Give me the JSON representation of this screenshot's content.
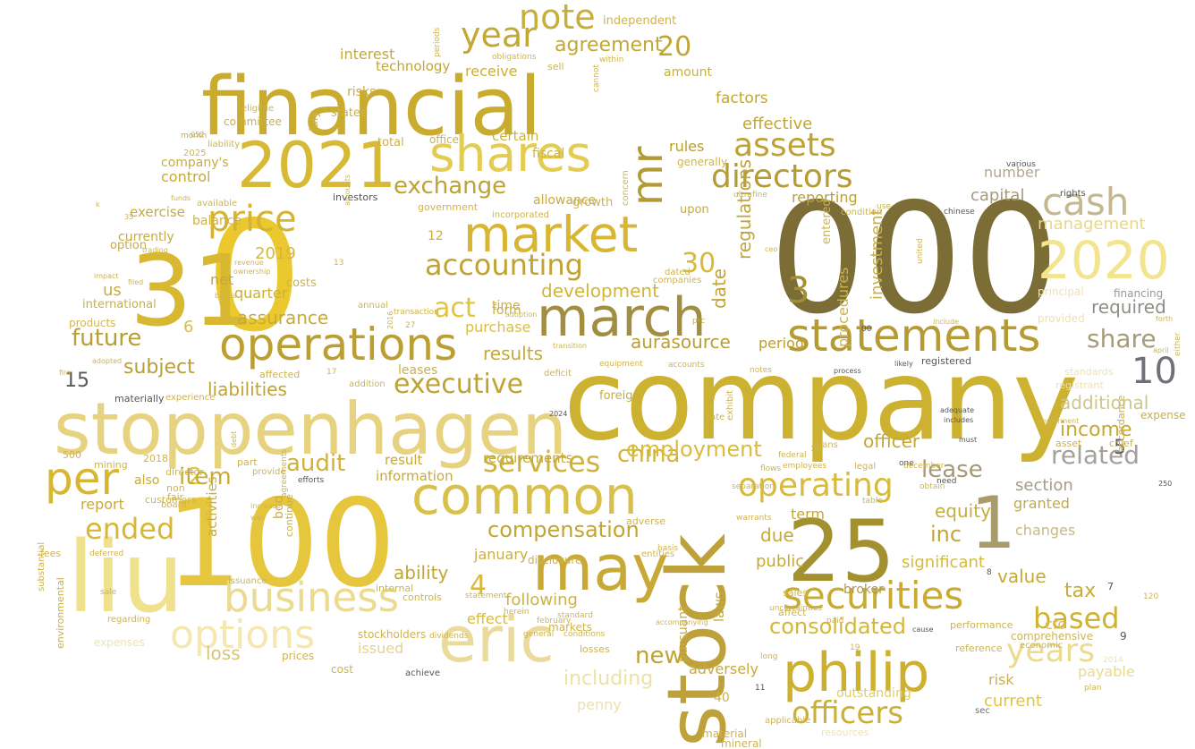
{
  "words": [
    {
      "t": "company",
      "c": "#cdb130"
    },
    {
      "t": "0",
      "c": "#eac82e"
    },
    {
      "t": "000",
      "c": "#7c6d36"
    },
    {
      "t": "financial",
      "c": "#c9ab2e"
    },
    {
      "t": "100",
      "c": "#e6c63d"
    },
    {
      "t": "stoppenhagen",
      "c": "#e6d27f"
    },
    {
      "t": "stock",
      "c": "#bea13a"
    },
    {
      "t": "31",
      "c": "#d8b830"
    },
    {
      "t": "liu",
      "c": "#f0e18d"
    },
    {
      "t": "25",
      "c": "#a39130"
    },
    {
      "t": "1",
      "c": "#a89b6c"
    },
    {
      "t": "2021",
      "c": "#d7b935"
    },
    {
      "t": "march",
      "c": "#a18e40"
    },
    {
      "t": "philip",
      "c": "#ccb02e"
    },
    {
      "t": "may",
      "c": "#c9a935"
    },
    {
      "t": "common",
      "c": "#d9c04a"
    },
    {
      "t": "eric",
      "c": "#eadb9d"
    },
    {
      "t": "2020",
      "c": "#f3e48e"
    },
    {
      "t": "shares",
      "c": "#e3cc50"
    },
    {
      "t": "statements",
      "c": "#b69b35"
    },
    {
      "t": "operations",
      "c": "#bb9f33"
    },
    {
      "t": "market",
      "c": "#d8b631"
    },
    {
      "t": "business",
      "c": "#ebdb90"
    },
    {
      "t": "securities",
      "c": "#c9ab32"
    },
    {
      "t": "cash",
      "c": "#c4b98e"
    },
    {
      "t": "options",
      "c": "#f4e8b0"
    },
    {
      "t": "per",
      "c": "#d8b630"
    },
    {
      "t": "accounting",
      "c": "#c0a332"
    },
    {
      "t": "price",
      "c": "#d5b434"
    },
    {
      "t": "year",
      "c": "#c4a834"
    },
    {
      "t": "note",
      "c": "#c8ae3a"
    },
    {
      "t": "assets",
      "c": "#bea236"
    },
    {
      "t": "directors",
      "c": "#b59c35"
    },
    {
      "t": "mr",
      "c": "#b49a35"
    },
    {
      "t": "operating",
      "c": "#d8bb3c"
    },
    {
      "t": "years",
      "c": "#ecdb8e"
    },
    {
      "t": "officers",
      "c": "#cbb035"
    },
    {
      "t": "act",
      "c": "#e2c53b"
    },
    {
      "t": "services",
      "c": "#cdb23e"
    },
    {
      "t": "executive",
      "c": "#bfa434"
    },
    {
      "t": "consolidated",
      "c": "#d3b838"
    },
    {
      "t": "ended",
      "c": "#d7b734"
    },
    {
      "t": "based",
      "c": "#d0b231"
    },
    {
      "t": "exchange",
      "c": "#bea234"
    },
    {
      "t": "share",
      "c": "#a59c78"
    },
    {
      "t": "related",
      "c": "#a5a19a"
    },
    {
      "t": "10",
      "c": "#6e7278"
    },
    {
      "t": "3",
      "c": "#a28e33"
    },
    {
      "t": "30",
      "c": "#d7b93b"
    },
    {
      "t": "20",
      "c": "#c2a635"
    },
    {
      "t": "4",
      "c": "#d7b93b"
    },
    {
      "t": "2",
      "c": "#e3c646"
    },
    {
      "t": "5",
      "c": "#5d5d5d"
    },
    {
      "t": "audit",
      "c": "#d0b13a"
    },
    {
      "t": "china",
      "c": "#d0b338"
    },
    {
      "t": "new",
      "c": "#c0a334"
    },
    {
      "t": "compensation",
      "c": "#c2a633"
    },
    {
      "t": "employment",
      "c": "#d9bc3e"
    },
    {
      "t": "agreement",
      "c": "#c3a735"
    },
    {
      "t": "development",
      "c": "#d3b636"
    },
    {
      "t": "future",
      "c": "#b7a036"
    },
    {
      "t": "subject",
      "c": "#b99f36"
    },
    {
      "t": "liabilities",
      "c": "#c0a334"
    },
    {
      "t": "assurance",
      "c": "#c8ab36"
    },
    {
      "t": "results",
      "c": "#c4a934"
    },
    {
      "t": "aurasource",
      "c": "#ba9f34"
    },
    {
      "t": "management",
      "c": "#e7d78a"
    },
    {
      "t": "required",
      "c": "#8e8d86"
    },
    {
      "t": "additional",
      "c": "#cdc78d"
    },
    {
      "t": "income",
      "c": "#c5a935"
    },
    {
      "t": "officer",
      "c": "#c4a836"
    },
    {
      "t": "lease",
      "c": "#a5997a"
    },
    {
      "t": "tax",
      "c": "#c9ac35"
    },
    {
      "t": "value",
      "c": "#c5aa34"
    },
    {
      "t": "including",
      "c": "#ede1a5"
    },
    {
      "t": "current",
      "c": "#e0c448"
    },
    {
      "t": "outstanding",
      "c": "#e0cc6f"
    },
    {
      "t": "payable",
      "c": "#e9da92"
    },
    {
      "t": "ability",
      "c": "#c1a638"
    },
    {
      "t": "public",
      "c": "#c5aa36"
    },
    {
      "t": "due",
      "c": "#c5a935"
    },
    {
      "t": "inc",
      "c": "#c3a634"
    },
    {
      "t": "equity",
      "c": "#c7ad3a"
    },
    {
      "t": "significant",
      "c": "#d6bb3a"
    },
    {
      "t": "capital",
      "c": "#a59b7a"
    },
    {
      "t": "number",
      "c": "#b5a78e"
    },
    {
      "t": "section",
      "c": "#a59c88"
    },
    {
      "t": "granted",
      "c": "#c3aa48"
    },
    {
      "t": "changes",
      "c": "#c9b981"
    },
    {
      "t": "investment",
      "c": "#c8af4a"
    },
    {
      "t": "procedures",
      "c": "#ccb44a"
    },
    {
      "t": "regulations",
      "c": "#bda543"
    },
    {
      "t": "date",
      "c": "#c2a532"
    },
    {
      "t": "reporting",
      "c": "#b9a036"
    },
    {
      "t": "effective",
      "c": "#c1a536"
    },
    {
      "t": "factors",
      "c": "#c2a634"
    },
    {
      "t": "rules",
      "c": "#b99d34"
    },
    {
      "t": "period",
      "c": "#b99e34"
    },
    {
      "t": "term",
      "c": "#c3a835"
    },
    {
      "t": "broker",
      "c": "#ae9a4f"
    },
    {
      "t": "interest",
      "c": "#c3a93b"
    },
    {
      "t": "technology",
      "c": "#c3a737"
    },
    {
      "t": "receive",
      "c": "#cbb038"
    },
    {
      "t": "certain",
      "c": "#cbb23b"
    },
    {
      "t": "control",
      "c": "#c6a938"
    },
    {
      "t": "exercise",
      "c": "#c6ab3b"
    },
    {
      "t": "quarter",
      "c": "#cbaf38"
    },
    {
      "t": "net",
      "c": "#c3a838"
    },
    {
      "t": "us",
      "c": "#cbad38"
    },
    {
      "t": "2019",
      "c": "#d5b73d"
    },
    {
      "t": "12",
      "c": "#c8ad40"
    },
    {
      "t": "purchase",
      "c": "#d8be46"
    },
    {
      "t": "time",
      "c": "#c8ae48"
    },
    {
      "t": "form",
      "c": "#c8ae48"
    },
    {
      "t": "leases",
      "c": "#cbb14a"
    },
    {
      "t": "item",
      "c": "#c7ab38"
    },
    {
      "t": "15",
      "c": "#595959"
    },
    {
      "t": "6",
      "c": "#d8be4a"
    },
    {
      "t": "january",
      "c": "#c9af4a"
    },
    {
      "t": "following",
      "c": "#ccb348"
    },
    {
      "t": "effect",
      "c": "#d6bb3c"
    },
    {
      "t": "issued",
      "c": "#e4d48c"
    },
    {
      "t": "loss",
      "c": "#d8c571"
    },
    {
      "t": "report",
      "c": "#c6aa40"
    },
    {
      "t": "information",
      "c": "#c5aa3c"
    },
    {
      "t": "result",
      "c": "#c5a93c"
    },
    {
      "t": "requirements",
      "c": "#c4a93c"
    },
    {
      "t": "laws",
      "c": "#c3a93e"
    },
    {
      "t": "adversely",
      "c": "#c6ab3e"
    },
    {
      "t": "risk",
      "c": "#c9b05a"
    },
    {
      "t": "40",
      "c": "#cbb148"
    },
    {
      "t": "penny",
      "c": "#ebe1b0"
    },
    {
      "t": "cfo",
      "c": "#d7be5a"
    },
    {
      "t": "pursuant",
      "c": "#c6ab40"
    },
    {
      "t": "activities",
      "c": "#c8ae44"
    },
    {
      "t": "bod",
      "c": "#c9ae44"
    },
    {
      "t": "also",
      "c": "#c7ab40"
    },
    {
      "t": "international",
      "c": "#c9af48"
    },
    {
      "t": "products",
      "c": "#cfb85a"
    },
    {
      "t": "costs",
      "c": "#cbb34e"
    },
    {
      "t": "month",
      "c": "#c5ab48"
    },
    {
      "t": "committee",
      "c": "#c9b050"
    },
    {
      "t": "company's",
      "c": "#c8ad42"
    },
    {
      "t": "balance",
      "c": "#ccb24a"
    },
    {
      "t": "currently",
      "c": "#c7ac44"
    },
    {
      "t": "option",
      "c": "#c8ad44"
    },
    {
      "t": "july",
      "c": "#ccb24a"
    },
    {
      "t": "states",
      "c": "#ccb24a"
    },
    {
      "t": "risks",
      "c": "#c8ae44"
    },
    {
      "t": "total",
      "c": "#cbb14c"
    },
    {
      "t": "office",
      "c": "#cbb24e"
    },
    {
      "t": "fiscal",
      "c": "#ccb24a"
    },
    {
      "t": "allowance",
      "c": "#c6ac46"
    },
    {
      "t": "growth",
      "c": "#ccb24c"
    },
    {
      "t": "government",
      "c": "#cdb450"
    },
    {
      "t": "incorporated",
      "c": "#ccb452"
    },
    {
      "t": "upon",
      "c": "#c6ab44"
    },
    {
      "t": "generally",
      "c": "#cdb452"
    },
    {
      "t": "amount",
      "c": "#c9af48"
    },
    {
      "t": "sell",
      "c": "#cdb452"
    },
    {
      "t": "independent",
      "c": "#cdb452"
    },
    {
      "t": "entered",
      "c": "#cdb350"
    },
    {
      "t": "plans",
      "c": "#cdb452"
    },
    {
      "t": "employees",
      "c": "#ccb350"
    },
    {
      "t": "legal",
      "c": "#ccb350"
    },
    {
      "t": "december",
      "c": "#cdb452"
    },
    {
      "t": "financing",
      "c": "#9a9890"
    },
    {
      "t": "principal",
      "c": "#ede3b0"
    },
    {
      "t": "provided",
      "c": "#ede3b0"
    },
    {
      "t": "chief",
      "c": "#cbb250"
    },
    {
      "t": "asset",
      "c": "#cbb250"
    },
    {
      "t": "expense",
      "c": "#c7ae4c"
    },
    {
      "t": "accordance",
      "c": "#c7ae4c"
    },
    {
      "t": "registrant",
      "c": "#ece3b6"
    },
    {
      "t": "standards",
      "c": "#ece3b6"
    },
    {
      "t": "registered",
      "c": "#555555"
    },
    {
      "t": "foreign",
      "c": "#c6ab44"
    },
    {
      "t": "fees",
      "c": "#cdb452"
    },
    {
      "t": "environmental",
      "c": "#c9af48"
    },
    {
      "t": "substantial",
      "c": "#c9af48"
    },
    {
      "t": "regarding",
      "c": "#cdb452"
    },
    {
      "t": "expenses",
      "c": "#ece3b6"
    },
    {
      "t": "continue",
      "c": "#c9af48"
    },
    {
      "t": "issuance",
      "c": "#cdb452"
    },
    {
      "t": "internal",
      "c": "#cdb452"
    },
    {
      "t": "controls",
      "c": "#cdb452"
    },
    {
      "t": "stockholders",
      "c": "#cdb452"
    },
    {
      "t": "prices",
      "c": "#cdb452"
    },
    {
      "t": "cost",
      "c": "#cdb452"
    },
    {
      "t": "markets",
      "c": "#cdb452"
    },
    {
      "t": "disclosure",
      "c": "#cdb452"
    },
    {
      "t": "adverse",
      "c": "#cdb452"
    },
    {
      "t": "material",
      "c": "#cdb452"
    },
    {
      "t": "applicable",
      "c": "#cdb452"
    },
    {
      "t": "mineral",
      "c": "#cdb452"
    },
    {
      "t": "resources",
      "c": "#ece3b6"
    },
    {
      "t": "sales",
      "c": "#cdb452"
    },
    {
      "t": "comprehensive",
      "c": "#cdb452"
    },
    {
      "t": "performance",
      "c": "#cdb452"
    },
    {
      "t": "reference",
      "c": "#cdb452"
    },
    {
      "t": "economic",
      "c": "#cdb452"
    },
    {
      "t": "plan",
      "c": "#cdb452"
    },
    {
      "t": "sec",
      "c": "#6e6e6e"
    },
    {
      "t": "affect",
      "c": "#cdb452"
    },
    {
      "t": "mining",
      "c": "#cdb452"
    },
    {
      "t": "2018",
      "c": "#cdb452"
    },
    {
      "t": "500",
      "c": "#cdb452"
    },
    {
      "t": "director",
      "c": "#cdb452"
    },
    {
      "t": "non",
      "c": "#cdb452"
    },
    {
      "t": "fair",
      "c": "#cdb452"
    },
    {
      "t": "customers",
      "c": "#cdb452"
    },
    {
      "t": "board",
      "c": "#cdb452"
    },
    {
      "t": "provide",
      "c": "#cdb452"
    },
    {
      "t": "part",
      "c": "#cdb452"
    },
    {
      "t": "experience",
      "c": "#cdb452"
    },
    {
      "t": "materially",
      "c": "#555555"
    },
    {
      "t": "affected",
      "c": "#cdb452"
    },
    {
      "t": "addition",
      "c": "#cdb452"
    },
    {
      "t": "deficit",
      "c": "#cdb452"
    },
    {
      "t": "equipment",
      "c": "#cdb452"
    },
    {
      "t": "accounts",
      "c": "#cdb452"
    },
    {
      "t": "companies",
      "c": "#cdb452"
    },
    {
      "t": "dated",
      "c": "#cdb452"
    },
    {
      "t": "annual",
      "c": "#cdb452"
    },
    {
      "t": "transaction",
      "c": "#cdb452"
    },
    {
      "t": "eligible",
      "c": "#cdb452"
    },
    {
      "t": "2025",
      "c": "#cdb452"
    },
    {
      "t": "liability",
      "c": "#cdb452"
    },
    {
      "t": "available",
      "c": "#cdb452"
    },
    {
      "t": "investors",
      "c": "#555555"
    },
    {
      "t": "various",
      "c": "#555555"
    },
    {
      "t": "rights",
      "c": "#555555"
    },
    {
      "t": "chinese",
      "c": "#555555"
    },
    {
      "t": "united",
      "c": "#cdb452"
    },
    {
      "t": "use",
      "c": "#cdb452"
    },
    {
      "t": "condition",
      "c": "#cdb452"
    },
    {
      "t": "ultrafine",
      "c": "#cdb452"
    },
    {
      "t": "concern",
      "c": "#cdb452"
    },
    {
      "t": "cannot",
      "c": "#cdb452"
    },
    {
      "t": "within",
      "c": "#cdb452"
    },
    {
      "t": "periods",
      "c": "#cdb452"
    },
    {
      "t": "obligations",
      "c": "#cdb452"
    },
    {
      "t": "052",
      "c": "#cdb452"
    },
    {
      "t": "prc",
      "c": "#c6ab44"
    },
    {
      "t": "exhibit",
      "c": "#cdb452"
    },
    {
      "t": "rate",
      "c": "#cdb452"
    },
    {
      "t": "separation",
      "c": "#cdb452"
    },
    {
      "t": "flows",
      "c": "#cdb452"
    },
    {
      "t": "federal",
      "c": "#cdb452"
    },
    {
      "t": "warrants",
      "c": "#cdb452"
    },
    {
      "t": "entities",
      "c": "#cdb452"
    },
    {
      "t": "basis",
      "c": "#cdb452"
    },
    {
      "t": "standard",
      "c": "#cdb452"
    },
    {
      "t": "conditions",
      "c": "#cdb452"
    },
    {
      "t": "losses",
      "c": "#cdb452"
    },
    {
      "t": "february",
      "c": "#cdb452"
    },
    {
      "t": "herein",
      "c": "#cdb452"
    },
    {
      "t": "statement",
      "c": "#cdb452"
    },
    {
      "t": "dividends",
      "c": "#cdb452"
    },
    {
      "t": "general",
      "c": "#cdb452"
    },
    {
      "t": "paid",
      "c": "#cdb452"
    },
    {
      "t": "long",
      "c": "#cdb452"
    },
    {
      "t": "table",
      "c": "#cdb452"
    },
    {
      "t": "obtain",
      "c": "#cdb452"
    },
    {
      "t": "need",
      "c": "#555555"
    },
    {
      "t": "one",
      "c": "#555555"
    },
    {
      "t": "includes",
      "c": "#555555"
    },
    {
      "t": "adequate",
      "c": "#555555"
    },
    {
      "t": "must",
      "c": "#555555"
    },
    {
      "t": "process",
      "c": "#555555"
    },
    {
      "t": "likely",
      "c": "#555555"
    },
    {
      "t": "include",
      "c": "#cdb452"
    },
    {
      "t": "forth",
      "c": "#cdb452"
    },
    {
      "t": "either",
      "c": "#cdb452"
    },
    {
      "t": "april",
      "c": "#cdb452"
    },
    {
      "t": "2014",
      "c": "#ece3b6"
    },
    {
      "t": "cause",
      "c": "#555555"
    },
    {
      "t": "achieve",
      "c": "#555555"
    },
    {
      "t": "adopted",
      "c": "#cdb452"
    },
    {
      "t": "fire",
      "c": "#cdb452"
    },
    {
      "t": "impact",
      "c": "#cdb452"
    },
    {
      "t": "debt",
      "c": "#cdb452"
    },
    {
      "t": "deferred",
      "c": "#cdb452"
    },
    {
      "t": "sale",
      "c": "#cdb452"
    },
    {
      "t": "increase",
      "c": "#cdb452"
    },
    {
      "t": "well",
      "c": "#cdb452"
    },
    {
      "t": "notes",
      "c": "#cdb452"
    },
    {
      "t": "uncertainties",
      "c": "#cdb452"
    },
    {
      "t": "11",
      "c": "#555555"
    },
    {
      "t": "8",
      "c": "#555555"
    },
    {
      "t": "9",
      "c": "#555555"
    },
    {
      "t": "7",
      "c": "#555555"
    },
    {
      "t": "14",
      "c": "#cdb452"
    },
    {
      "t": "27",
      "c": "#cdb452"
    },
    {
      "t": "13",
      "c": "#cdb452"
    },
    {
      "t": "17",
      "c": "#cdb452"
    },
    {
      "t": "19",
      "c": "#cdb452"
    },
    {
      "t": "00",
      "c": "#555555"
    },
    {
      "t": "120",
      "c": "#cdb452"
    },
    {
      "t": "2016",
      "c": "#cdb452"
    },
    {
      "t": "2024",
      "c": "#555555"
    },
    {
      "t": "250",
      "c": "#555555"
    },
    {
      "t": "impairment",
      "c": "#cdb452"
    },
    {
      "t": "ceo",
      "c": "#cdb452"
    },
    {
      "t": "accompanying",
      "c": "#cdb452"
    },
    {
      "t": "adoption",
      "c": "#cdb452"
    },
    {
      "t": "transition",
      "c": "#cdb452"
    },
    {
      "t": "amounts",
      "c": "#cdb452"
    },
    {
      "t": "ownership",
      "c": "#cdb452"
    },
    {
      "t": "revenue",
      "c": "#cdb452"
    },
    {
      "t": "funds",
      "c": "#cdb452"
    },
    {
      "t": "trading",
      "c": "#cdb452"
    },
    {
      "t": "filed",
      "c": "#cdb452"
    },
    {
      "t": "35",
      "c": "#cdb452"
    },
    {
      "t": "k",
      "c": "#cdb452"
    },
    {
      "t": "bonus",
      "c": "#cdb452"
    },
    {
      "t": "agreements",
      "c": "#cdb452"
    },
    {
      "t": "efforts",
      "c": "#555555"
    }
  ]
}
